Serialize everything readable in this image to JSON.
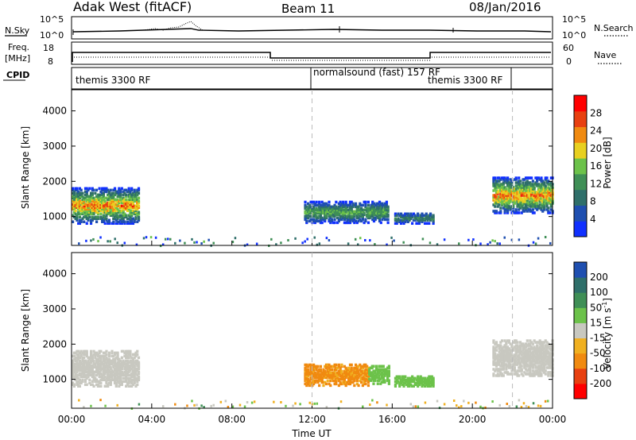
{
  "header": {
    "site": "Adak West (fitACF)",
    "beam": "Beam 11",
    "date": "08/Jan/2016"
  },
  "panel_labels": {
    "nsky": "N.Sky",
    "freq_line1": "Freq.",
    "freq_line2": "[MHz]",
    "cpid": "CPID",
    "nsearch": "N.Search",
    "nave": "Nave"
  },
  "scales": {
    "nsky_top": "10^5",
    "nsky_bottom": "10^0",
    "nsearch_top": "10^5",
    "nsearch_bottom": "10^0",
    "freq_top": "18",
    "freq_bottom": "8",
    "nave_top": "60",
    "nave_bottom": "0"
  },
  "cpid_segments": [
    {
      "label": "themis 3300 RF",
      "start_hour": 0
    },
    {
      "label": "normalsound (fast) 157 RF",
      "start_hour": 12
    },
    {
      "label": "themis 3300 RF",
      "start_hour": 22
    }
  ],
  "colors": {
    "power": [
      "#1030ff",
      "#1f4fb0",
      "#2f6f6a",
      "#3f8f56",
      "#6cc24a",
      "#e8d020",
      "#f08a10",
      "#e84010",
      "#ff0000"
    ],
    "velocity": [
      "#ff0000",
      "#e84010",
      "#f08a10",
      "#f0b020",
      "#c8c8c0",
      "#6cc24a",
      "#3f8f56",
      "#2f6f6a",
      "#1f4fb0"
    ],
    "ground_scatter": "#c8c8c0"
  },
  "chart_data": [
    {
      "type": "heatmap",
      "name_on_chart": "",
      "ylabel": "Slant Range [km]",
      "xlabel": "Time UT",
      "xlim_hours": [
        0,
        24
      ],
      "ylim_km": [
        180,
        4600
      ],
      "yticks": [
        1000,
        2000,
        3000,
        4000
      ],
      "xtick_labels": [
        "00:00",
        "04:00",
        "08:00",
        "12:00",
        "16:00",
        "20:00",
        "00:00"
      ],
      "colorbar": {
        "label": "Power [dB]",
        "ticks": [
          "4",
          "8",
          "12",
          "16",
          "20",
          "24",
          "28"
        ]
      },
      "scatter_regions": [
        {
          "t_start": 0.0,
          "t_end": 3.3,
          "range_center_km": 1300,
          "thickness_km": 500,
          "peak_db": 28
        },
        {
          "t_start": 11.6,
          "t_end": 15.8,
          "range_center_km": 1120,
          "thickness_km": 300,
          "peak_db": 16
        },
        {
          "t_start": 16.1,
          "t_end": 18.0,
          "range_center_km": 950,
          "thickness_km": 150,
          "peak_db": 12
        },
        {
          "t_start": 21.0,
          "t_end": 24.0,
          "range_center_km": 1600,
          "thickness_km": 500,
          "peak_db": 28
        }
      ]
    },
    {
      "type": "heatmap",
      "ylabel": "Slant Range [km]",
      "xlabel": "Time UT",
      "xlim_hours": [
        0,
        24
      ],
      "ylim_km": [
        180,
        4600
      ],
      "yticks": [
        1000,
        2000,
        3000,
        4000
      ],
      "xtick_labels": [
        "00:00",
        "04:00",
        "08:00",
        "12:00",
        "16:00",
        "20:00",
        "00:00"
      ],
      "colorbar": {
        "label_main": "Velocity [m s",
        "label_sup": "-1",
        "label_end": "]",
        "ticks": [
          "-200",
          "-100",
          "-50",
          "-15",
          "15",
          "50",
          "100",
          "200"
        ]
      },
      "scatter_regions": [
        {
          "t_start": 0.0,
          "t_end": 3.3,
          "range_center_km": 1300,
          "thickness_km": 500,
          "velocity_ms": 0
        },
        {
          "t_start": 11.6,
          "t_end": 14.8,
          "range_center_km": 1120,
          "thickness_km": 300,
          "velocity_ms": -60
        },
        {
          "t_start": 14.8,
          "t_end": 15.8,
          "range_center_km": 1120,
          "thickness_km": 250,
          "velocity_ms": 30
        },
        {
          "t_start": 16.1,
          "t_end": 18.0,
          "range_center_km": 950,
          "thickness_km": 150,
          "velocity_ms": 30
        },
        {
          "t_start": 21.0,
          "t_end": 24.0,
          "range_center_km": 1600,
          "thickness_km": 500,
          "velocity_ms": 0
        }
      ]
    }
  ]
}
